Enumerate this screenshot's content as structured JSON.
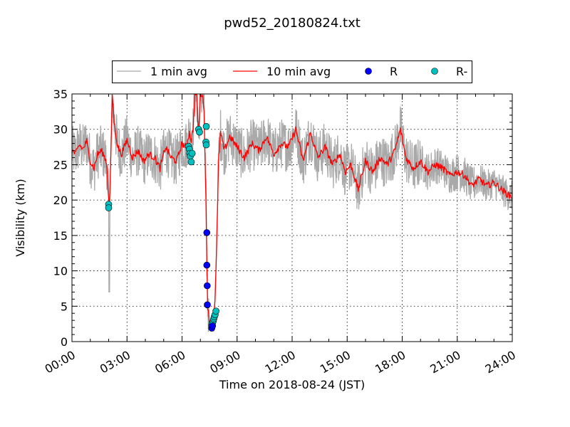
{
  "chart_data": {
    "type": "line",
    "title": "pwd52_20180824.txt",
    "xlabel": "Time on 2018-08-24 (JST)",
    "ylabel": "Visibility (km)",
    "xlim": [
      0,
      24
    ],
    "ylim": [
      0,
      35
    ],
    "x_unit": "hours",
    "grid": true,
    "legend_placement": "top-center, above plot",
    "x_ticks": [
      0,
      3,
      6,
      9,
      12,
      15,
      18,
      21,
      24
    ],
    "x_tick_labels": [
      "00:00",
      "03:00",
      "06:00",
      "09:00",
      "12:00",
      "15:00",
      "18:00",
      "21:00",
      "24:00"
    ],
    "y_ticks": [
      0,
      5,
      10,
      15,
      20,
      25,
      30,
      35
    ],
    "y_tick_labels": [
      "0",
      "5",
      "10",
      "15",
      "20",
      "25",
      "30",
      "35"
    ],
    "legend": [
      {
        "label": "1 min avg",
        "kind": "line",
        "color": "#a9a9a9"
      },
      {
        "label": "10 min avg",
        "kind": "line",
        "color": "#ff0000"
      },
      {
        "label": "R",
        "kind": "marker",
        "color": "#0000ff"
      },
      {
        "label": "R-",
        "kind": "marker",
        "color": "#00bfbf"
      }
    ],
    "series": [
      {
        "name": "10 min avg",
        "color": "#ff0000",
        "x": [
          0,
          0.2,
          0.4,
          0.6,
          0.8,
          1.0,
          1.2,
          1.4,
          1.6,
          1.8,
          1.9,
          2.0,
          2.05,
          2.1,
          2.2,
          2.3,
          2.5,
          2.7,
          3.0,
          3.3,
          3.6,
          3.9,
          4.2,
          4.5,
          4.8,
          5.1,
          5.4,
          5.7,
          6.0,
          6.2,
          6.4,
          6.5,
          6.6,
          6.7,
          6.8,
          6.9,
          7.0,
          7.1,
          7.2,
          7.3,
          7.35,
          7.4,
          7.5,
          7.6,
          7.7,
          7.8,
          7.9,
          8.0,
          8.1,
          8.3,
          8.6,
          9.0,
          9.4,
          9.8,
          10.2,
          10.6,
          11.0,
          11.4,
          11.8,
          12.2,
          12.6,
          13.0,
          13.4,
          13.8,
          14.2,
          14.6,
          14.9,
          15.2,
          15.6,
          16.0,
          16.4,
          16.8,
          17.2,
          17.6,
          17.9,
          18.2,
          18.6,
          19.0,
          19.4,
          19.8,
          20.2,
          20.6,
          21.0,
          21.4,
          21.8,
          22.2,
          22.6,
          23.0,
          23.4,
          23.8,
          24.0
        ],
        "y": [
          27.0,
          26.5,
          27.8,
          27.2,
          28.3,
          25.5,
          24.5,
          26.5,
          27.0,
          26.0,
          25.0,
          20.0,
          19.5,
          24.0,
          35.0,
          31.0,
          27.5,
          26.5,
          28.5,
          26.0,
          27.0,
          25.5,
          26.5,
          26.0,
          24.5,
          27.5,
          26.0,
          25.5,
          28.0,
          27.5,
          29.5,
          28.5,
          30.0,
          35.0,
          35.0,
          29.0,
          35.0,
          35.0,
          33.0,
          20.0,
          12.0,
          5.0,
          2.2,
          1.8,
          2.5,
          6.0,
          15.0,
          26.0,
          29.5,
          27.0,
          29.0,
          27.5,
          26.0,
          28.0,
          27.0,
          29.0,
          26.5,
          28.0,
          27.5,
          30.0,
          25.5,
          29.5,
          26.0,
          27.5,
          25.0,
          26.5,
          24.0,
          25.0,
          21.5,
          25.5,
          24.0,
          26.0,
          25.0,
          27.0,
          30.0,
          26.0,
          24.5,
          25.5,
          24.0,
          25.0,
          24.5,
          23.5,
          24.0,
          23.5,
          22.0,
          23.0,
          22.0,
          22.5,
          21.5,
          20.7,
          20.5
        ]
      },
      {
        "name": "R",
        "color": "#0000ff",
        "x": [
          7.35,
          7.35,
          7.37,
          7.38,
          7.62,
          7.66
        ],
        "y": [
          15.4,
          10.8,
          7.9,
          5.2,
          1.9,
          2.2
        ]
      },
      {
        "name": "R-",
        "color": "#00bfbf",
        "x": [
          2.0,
          2.0,
          6.35,
          6.4,
          6.42,
          6.45,
          6.5,
          6.55,
          6.9,
          6.95,
          7.32,
          7.3,
          7.32,
          7.62,
          7.66,
          7.7,
          7.73,
          7.76,
          7.8,
          7.85
        ],
        "y": [
          19.4,
          18.9,
          27.6,
          27.2,
          26.6,
          26.2,
          25.4,
          26.6,
          30.0,
          29.6,
          30.4,
          28.2,
          27.8,
          2.3,
          2.6,
          2.9,
          3.2,
          3.5,
          3.8,
          4.3
        ]
      }
    ],
    "one_min_avg": {
      "name": "1 min avg",
      "color": "#a9a9a9",
      "description_range": "fluctuates roughly ±4 km around 10 min avg; dips to 7 km near 02:00 and 1.5 km near 07:40"
    }
  }
}
